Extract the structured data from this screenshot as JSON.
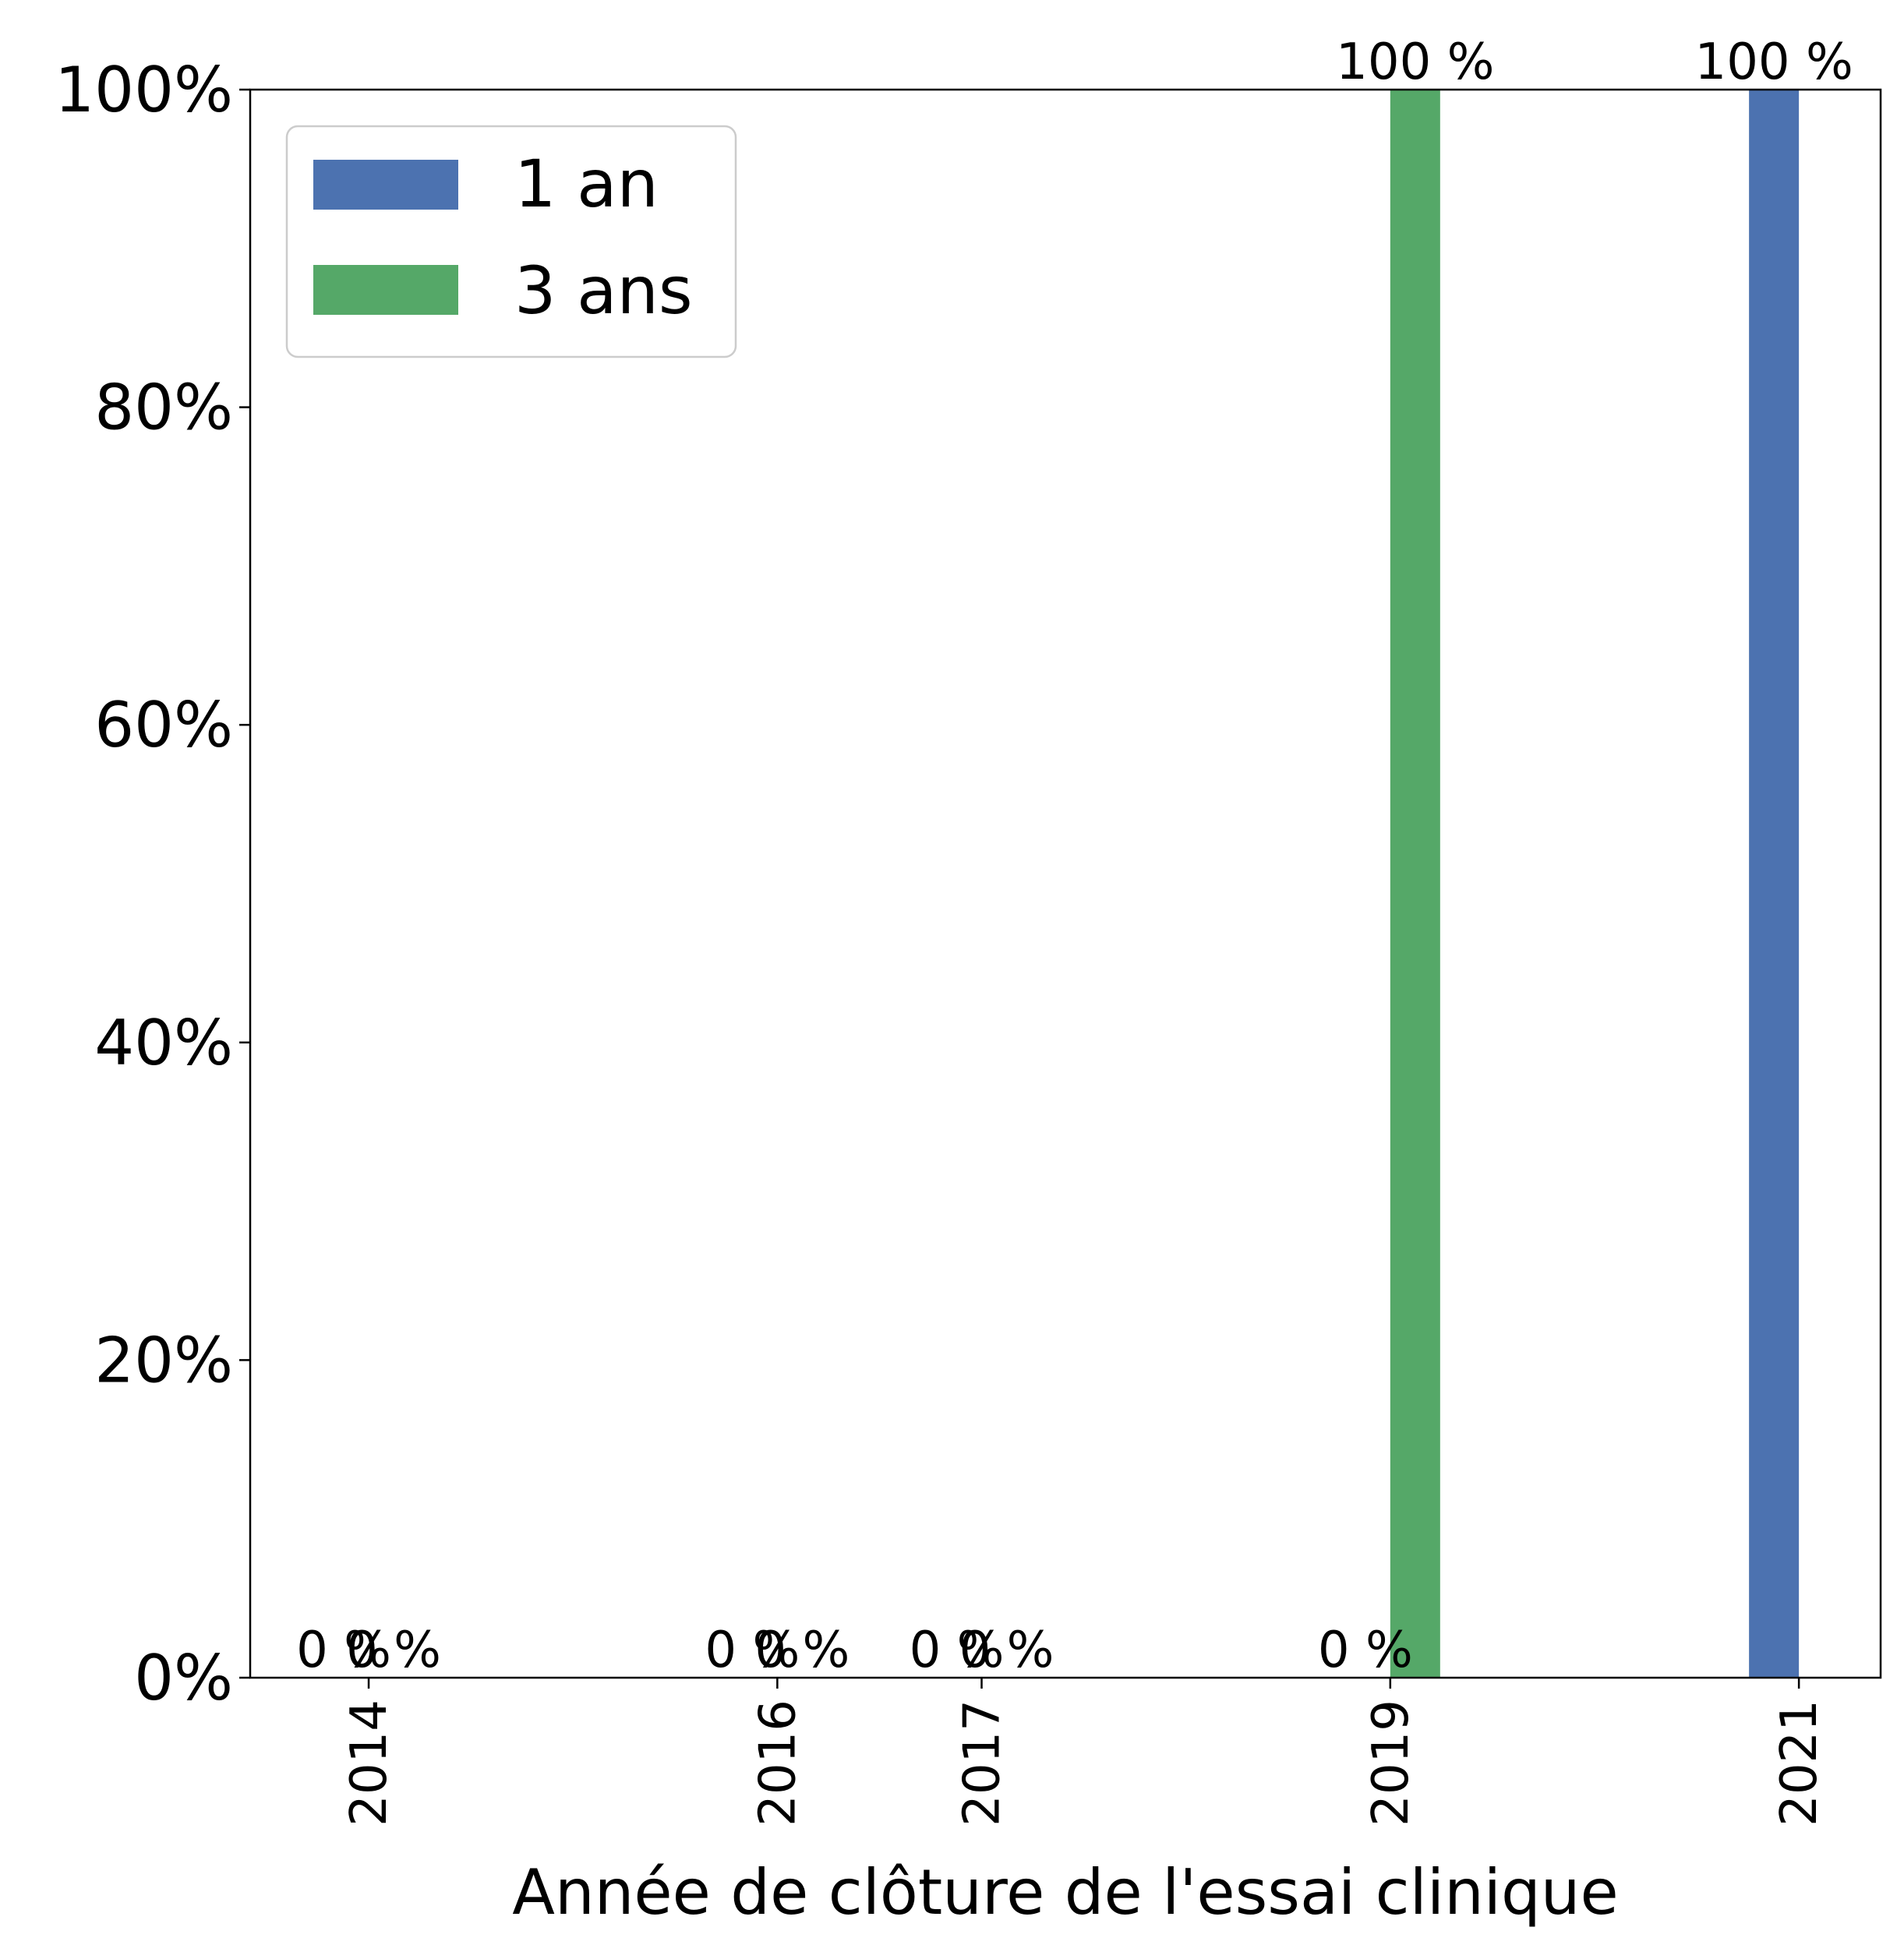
{
  "chart_data": {
    "type": "bar",
    "categories": [
      "2014",
      "2016",
      "2017",
      "2019",
      "2021"
    ],
    "x": [
      2014,
      2016,
      2017,
      2019,
      2021
    ],
    "series": [
      {
        "name": "1 an",
        "color": "#4c72b0",
        "values": [
          0,
          0,
          0,
          0,
          100
        ],
        "labels": [
          "0 %",
          "0 %",
          "0 %",
          "0 %",
          "100 %"
        ]
      },
      {
        "name": "3 ans",
        "color": "#55a868",
        "values": [
          0,
          0,
          0,
          100,
          null
        ],
        "labels": [
          "0 %",
          "0 %",
          "0 %",
          "100 %",
          null
        ]
      }
    ],
    "xlabel": "Année de clôture de l'essai clinique",
    "ylabel": "",
    "ylim": [
      0,
      100
    ],
    "xlim": [
      2013.42,
      2021.4
    ],
    "yticks": [
      0,
      20,
      40,
      60,
      80,
      100
    ],
    "ytick_labels": [
      "0%",
      "20%",
      "40%",
      "60%",
      "80%",
      "100%"
    ],
    "grid": false,
    "legend": "upper left"
  }
}
